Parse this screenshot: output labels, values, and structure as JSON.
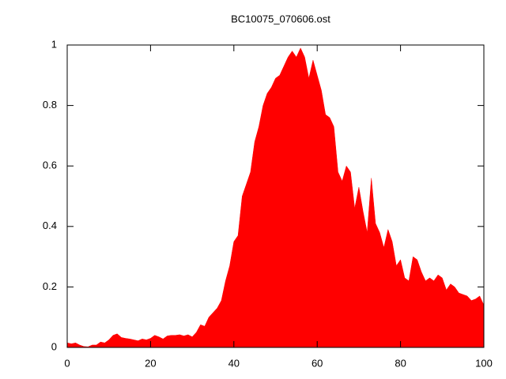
{
  "chart_data": {
    "type": "area",
    "title": "BC10075_070606.ost",
    "x": [
      0,
      1,
      2,
      3,
      4,
      5,
      6,
      7,
      8,
      9,
      10,
      11,
      12,
      13,
      14,
      15,
      16,
      17,
      18,
      19,
      20,
      21,
      22,
      23,
      24,
      25,
      26,
      27,
      28,
      29,
      30,
      31,
      32,
      33,
      34,
      35,
      36,
      37,
      38,
      39,
      40,
      41,
      42,
      43,
      44,
      45,
      46,
      47,
      48,
      49,
      50,
      51,
      52,
      53,
      54,
      55,
      56,
      57,
      58,
      59,
      60,
      61,
      62,
      63,
      64,
      65,
      66,
      67,
      68,
      69,
      70,
      71,
      72,
      73,
      74,
      75,
      76,
      77,
      78,
      79,
      80,
      81,
      82,
      83,
      84,
      85,
      86,
      87,
      88,
      89,
      90,
      91,
      92,
      93,
      94,
      95,
      96,
      97,
      98,
      99,
      100
    ],
    "values": [
      0.015,
      0.012,
      0.015,
      0.008,
      0.003,
      0.002,
      0.008,
      0.008,
      0.018,
      0.015,
      0.025,
      0.04,
      0.045,
      0.033,
      0.03,
      0.028,
      0.025,
      0.022,
      0.028,
      0.025,
      0.03,
      0.04,
      0.035,
      0.028,
      0.038,
      0.04,
      0.04,
      0.042,
      0.038,
      0.042,
      0.035,
      0.05,
      0.075,
      0.07,
      0.1,
      0.115,
      0.13,
      0.155,
      0.22,
      0.27,
      0.35,
      0.37,
      0.5,
      0.54,
      0.58,
      0.68,
      0.73,
      0.8,
      0.84,
      0.86,
      0.89,
      0.9,
      0.93,
      0.96,
      0.98,
      0.96,
      0.99,
      0.96,
      0.89,
      0.95,
      0.9,
      0.85,
      0.77,
      0.76,
      0.73,
      0.58,
      0.55,
      0.6,
      0.58,
      0.46,
      0.53,
      0.45,
      0.38,
      0.56,
      0.41,
      0.38,
      0.33,
      0.39,
      0.35,
      0.27,
      0.29,
      0.23,
      0.22,
      0.3,
      0.29,
      0.25,
      0.22,
      0.23,
      0.22,
      0.24,
      0.23,
      0.19,
      0.21,
      0.2,
      0.18,
      0.175,
      0.17,
      0.155,
      0.16,
      0.17,
      0.14
    ],
    "color": "#ff0000",
    "xlim": [
      0,
      100
    ],
    "xticks": [
      0,
      20,
      40,
      60,
      80,
      100
    ],
    "ylim": [
      0,
      1
    ],
    "yticks": [
      0,
      0.2,
      0.4,
      0.6,
      0.8,
      1
    ]
  }
}
